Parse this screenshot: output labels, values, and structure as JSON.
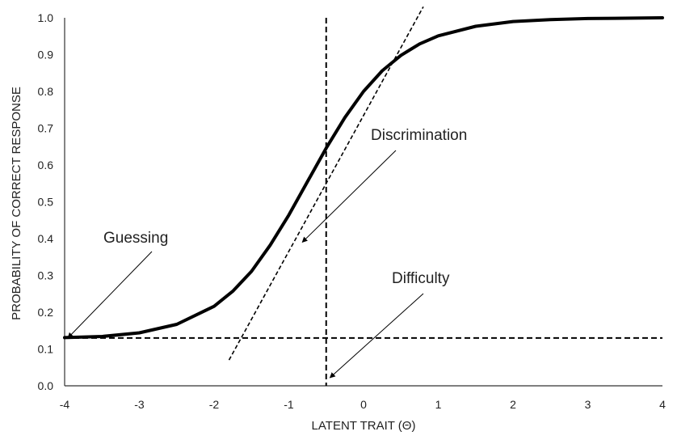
{
  "chart_data": {
    "type": "line",
    "title": "",
    "xlabel": "LATENT TRAIT (Θ)",
    "ylabel": "PROBABILITY OF CORRECT RESPONSE",
    "xlim": [
      -4,
      4
    ],
    "ylim": [
      0,
      1
    ],
    "x_ticks": [
      "-4",
      "-3",
      "-2",
      "-1",
      "0",
      "1",
      "2",
      "3",
      "4"
    ],
    "y_ticks": [
      "0.0",
      "0.1",
      "0.2",
      "0.3",
      "0.4",
      "0.5",
      "0.6",
      "0.7",
      "0.8",
      "0.9",
      "1.0"
    ],
    "grid": false,
    "legend": "none",
    "series": [
      {
        "x": [
          -4.0,
          -3.5,
          -3.0,
          -2.5,
          -2.0,
          -1.75,
          -1.5,
          -1.25,
          -1.0,
          -0.75,
          -0.5,
          -0.25,
          0.0,
          0.25,
          0.5,
          0.75,
          1.0,
          1.5,
          2.0,
          2.5,
          3.0,
          3.5,
          4.0
        ],
        "y": [
          0.131,
          0.134,
          0.144,
          0.167,
          0.216,
          0.257,
          0.311,
          0.382,
          0.464,
          0.555,
          0.646,
          0.729,
          0.8,
          0.856,
          0.898,
          0.929,
          0.951,
          0.977,
          0.99,
          0.995,
          0.998,
          0.999,
          1.0
        ]
      }
    ],
    "reference_lines": {
      "guessing_y": 0.13,
      "difficulty_x": -0.5,
      "tangent": {
        "x": [
          -1.8,
          0.8
        ],
        "y": [
          0.07,
          1.03
        ]
      }
    },
    "annotations": [
      {
        "id": "guessing",
        "text": "Guessing",
        "target": [
          -4.0,
          0.13
        ]
      },
      {
        "id": "discrimination",
        "text": "Discrimination",
        "target": [
          -0.82,
          0.39
        ]
      },
      {
        "id": "difficulty",
        "text": "Difficulty",
        "target": [
          -0.45,
          0.0
        ]
      }
    ],
    "colors": {
      "curve": "#000000",
      "axis": "#333333",
      "text": "#222222"
    }
  }
}
